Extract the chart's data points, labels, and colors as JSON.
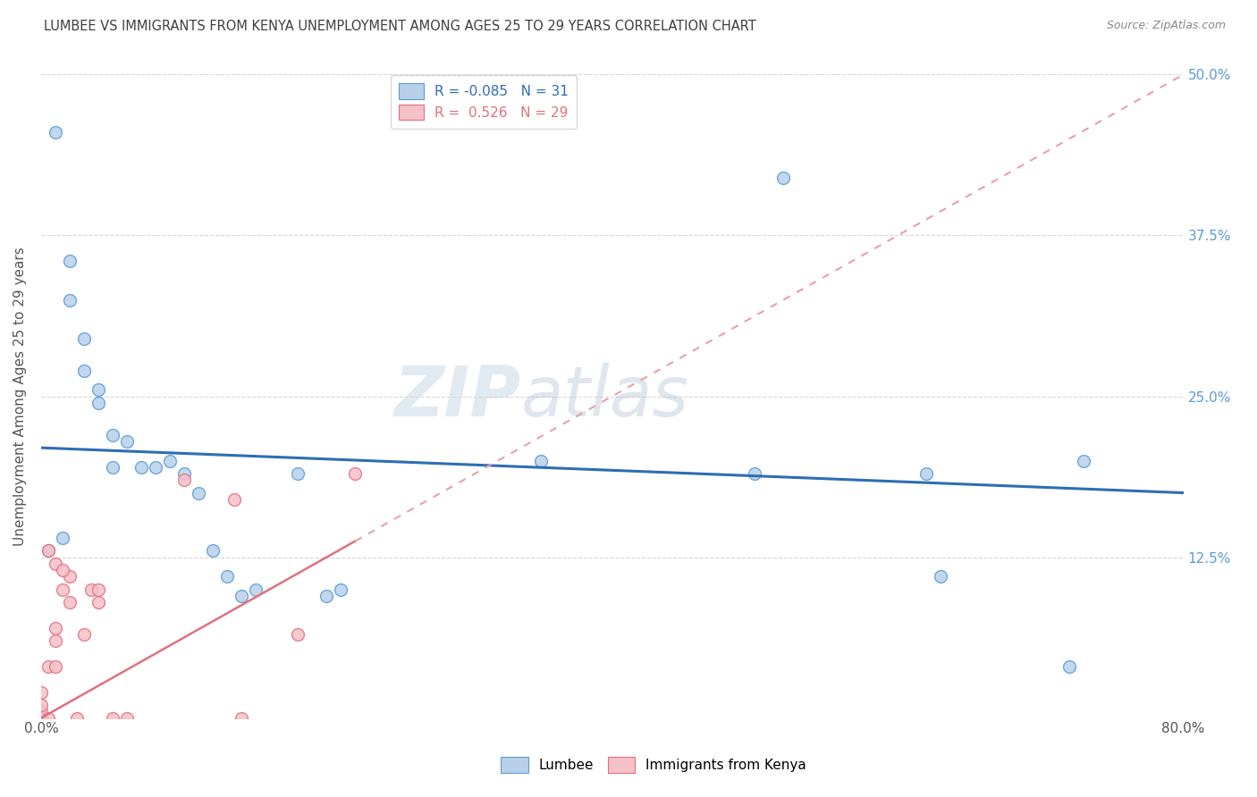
{
  "title": "LUMBEE VS IMMIGRANTS FROM KENYA UNEMPLOYMENT AMONG AGES 25 TO 29 YEARS CORRELATION CHART",
  "source": "Source: ZipAtlas.com",
  "ylabel": "Unemployment Among Ages 25 to 29 years",
  "xlim": [
    0,
    0.8
  ],
  "ylim": [
    0,
    0.5
  ],
  "lumbee_x": [
    0.01,
    0.02,
    0.02,
    0.03,
    0.03,
    0.04,
    0.04,
    0.05,
    0.05,
    0.06,
    0.07,
    0.08,
    0.09,
    0.1,
    0.11,
    0.12,
    0.13,
    0.14,
    0.15,
    0.18,
    0.2,
    0.21,
    0.35,
    0.5,
    0.52,
    0.62,
    0.63,
    0.72,
    0.73,
    0.005,
    0.015
  ],
  "lumbee_y": [
    0.455,
    0.325,
    0.355,
    0.27,
    0.295,
    0.245,
    0.255,
    0.22,
    0.195,
    0.215,
    0.195,
    0.195,
    0.2,
    0.19,
    0.175,
    0.13,
    0.11,
    0.095,
    0.1,
    0.19,
    0.095,
    0.1,
    0.2,
    0.19,
    0.42,
    0.19,
    0.11,
    0.04,
    0.2,
    0.13,
    0.14
  ],
  "kenya_x": [
    0.0,
    0.0,
    0.0,
    0.0,
    0.0,
    0.0,
    0.005,
    0.005,
    0.01,
    0.01,
    0.01,
    0.015,
    0.02,
    0.02,
    0.025,
    0.03,
    0.035,
    0.04,
    0.04,
    0.05,
    0.06,
    0.1,
    0.135,
    0.14,
    0.18,
    0.22,
    0.005,
    0.01,
    0.015
  ],
  "kenya_y": [
    0.0,
    0.0,
    0.0,
    0.005,
    0.01,
    0.02,
    0.0,
    0.04,
    0.04,
    0.06,
    0.07,
    0.1,
    0.09,
    0.11,
    0.0,
    0.065,
    0.1,
    0.09,
    0.1,
    0.0,
    0.0,
    0.185,
    0.17,
    0.0,
    0.065,
    0.19,
    0.13,
    0.12,
    0.115
  ],
  "lumbee_color": "#b8d0ea",
  "kenya_color": "#f5c0c8",
  "lumbee_edge": "#5b9bd5",
  "kenya_edge": "#e07080",
  "trend_lumbee_color": "#2e6db4",
  "trend_kenya_solid_color": "#e07080",
  "trend_kenya_dash_color": "#e8a0a8",
  "lumbee_R": -0.085,
  "lumbee_N": 31,
  "kenya_R": 0.526,
  "kenya_N": 29,
  "watermark_zip": "ZIP",
  "watermark_atlas": "atlas",
  "background_color": "#ffffff",
  "grid_color": "#cccccc",
  "title_color": "#404040",
  "axis_label_color": "#5b9bd5",
  "marker_size": 100,
  "trend_lumbee_start_y": 0.21,
  "trend_lumbee_end_y": 0.175,
  "trend_kenya_start_y": 0.0,
  "trend_kenya_end_y": 0.5
}
